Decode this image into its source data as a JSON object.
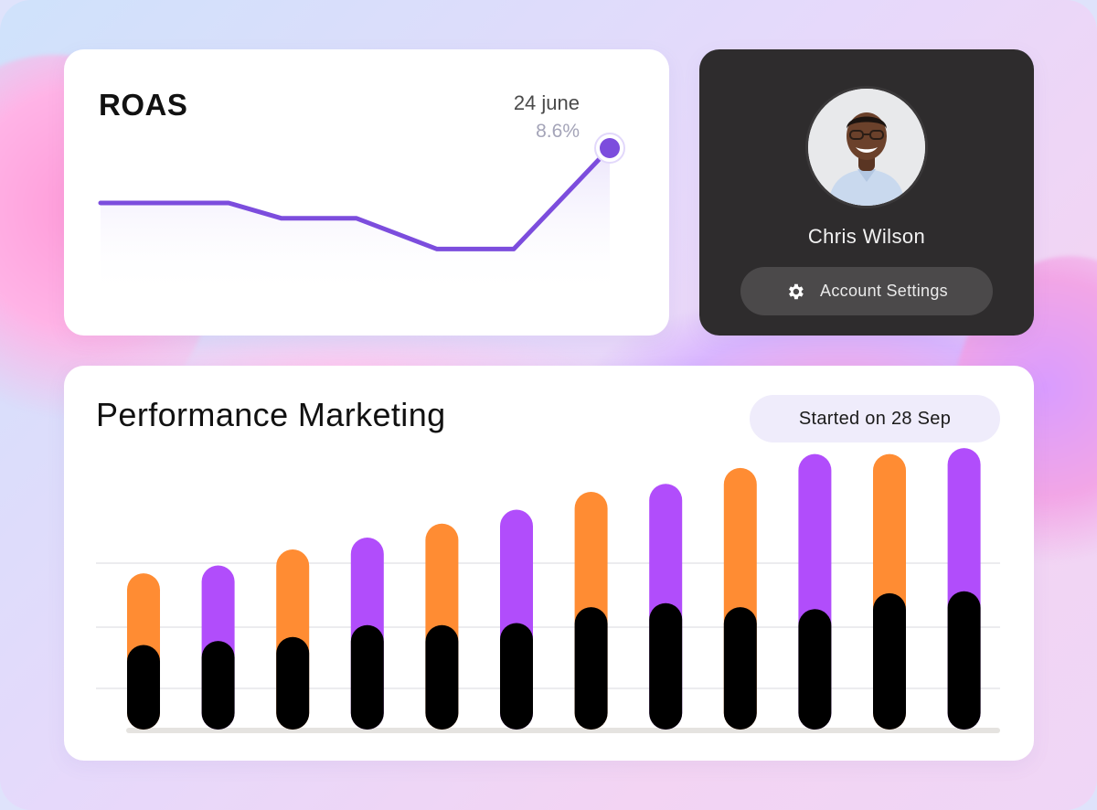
{
  "roas": {
    "title": "ROAS",
    "highlight_date": "24 june",
    "highlight_value": "8.6%",
    "accent_color": "#7c4ddd",
    "line_points": [
      3.5,
      3.5,
      2.8,
      2.8,
      1.4,
      1.4,
      6.0
    ]
  },
  "profile": {
    "name": "Chris Wilson",
    "settings_label": "Account Settings",
    "settings_icon": "gear-icon"
  },
  "performance": {
    "title": "Performance Marketing",
    "started_label": "Started on 28 Sep"
  },
  "chart_data": {
    "type": "bar",
    "stacked": true,
    "colors": {
      "base": "#000000",
      "orange": "#ff8c33",
      "purple": "#b14dfb"
    },
    "top_colors": [
      "orange",
      "purple",
      "orange",
      "purple",
      "orange",
      "purple",
      "orange",
      "purple",
      "orange",
      "purple",
      "orange",
      "purple"
    ],
    "base_values": [
      1.3,
      1.4,
      1.5,
      1.8,
      1.8,
      1.85,
      2.25,
      2.35,
      2.25,
      2.2,
      2.6,
      2.65
    ],
    "top_values": [
      1.8,
      1.9,
      2.2,
      2.2,
      2.55,
      2.85,
      2.9,
      3.0,
      3.5,
      3.9,
      3.5,
      3.6
    ],
    "ylim": [
      0,
      6.5
    ],
    "grid": true
  }
}
